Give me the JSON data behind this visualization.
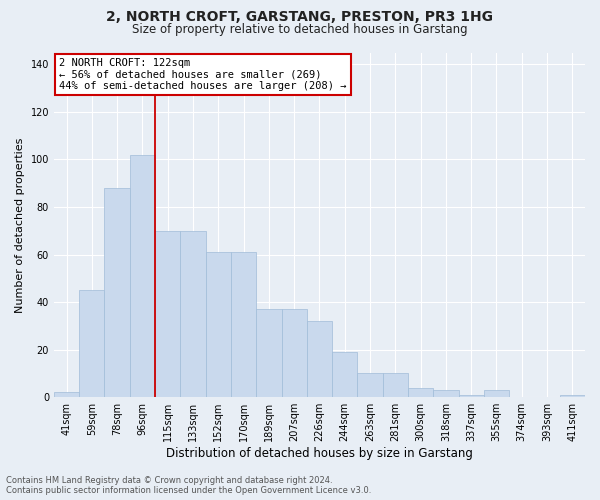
{
  "title": "2, NORTH CROFT, GARSTANG, PRESTON, PR3 1HG",
  "subtitle": "Size of property relative to detached houses in Garstang",
  "xlabel": "Distribution of detached houses by size in Garstang",
  "ylabel": "Number of detached properties",
  "categories": [
    "41sqm",
    "59sqm",
    "78sqm",
    "96sqm",
    "115sqm",
    "133sqm",
    "152sqm",
    "170sqm",
    "189sqm",
    "207sqm",
    "226sqm",
    "244sqm",
    "263sqm",
    "281sqm",
    "300sqm",
    "318sqm",
    "337sqm",
    "355sqm",
    "374sqm",
    "393sqm",
    "411sqm"
  ],
  "values": [
    2,
    45,
    88,
    102,
    70,
    70,
    61,
    61,
    37,
    37,
    32,
    19,
    10,
    10,
    4,
    3,
    1,
    3,
    0,
    0,
    1
  ],
  "bar_color": "#c9d9ed",
  "bar_edge_color": "#a0bcd8",
  "red_line_index": 4,
  "red_line_color": "#cc0000",
  "annotation_line1": "2 NORTH CROFT: 122sqm",
  "annotation_line2": "← 56% of detached houses are smaller (269)",
  "annotation_line3": "44% of semi-detached houses are larger (208) →",
  "annotation_edge_color": "#cc0000",
  "annotation_face_color": "#ffffff",
  "ylim": [
    0,
    145
  ],
  "yticks": [
    0,
    20,
    40,
    60,
    80,
    100,
    120,
    140
  ],
  "footer_line1": "Contains HM Land Registry data © Crown copyright and database right 2024.",
  "footer_line2": "Contains public sector information licensed under the Open Government Licence v3.0.",
  "title_fontsize": 10,
  "subtitle_fontsize": 8.5,
  "ylabel_fontsize": 8,
  "xlabel_fontsize": 8.5,
  "tick_fontsize": 7,
  "annotation_fontsize": 7.5,
  "footer_fontsize": 6,
  "bg_color": "#e8eef5",
  "grid_color": "#ffffff",
  "text_color": "#222222",
  "footer_color": "#555555"
}
